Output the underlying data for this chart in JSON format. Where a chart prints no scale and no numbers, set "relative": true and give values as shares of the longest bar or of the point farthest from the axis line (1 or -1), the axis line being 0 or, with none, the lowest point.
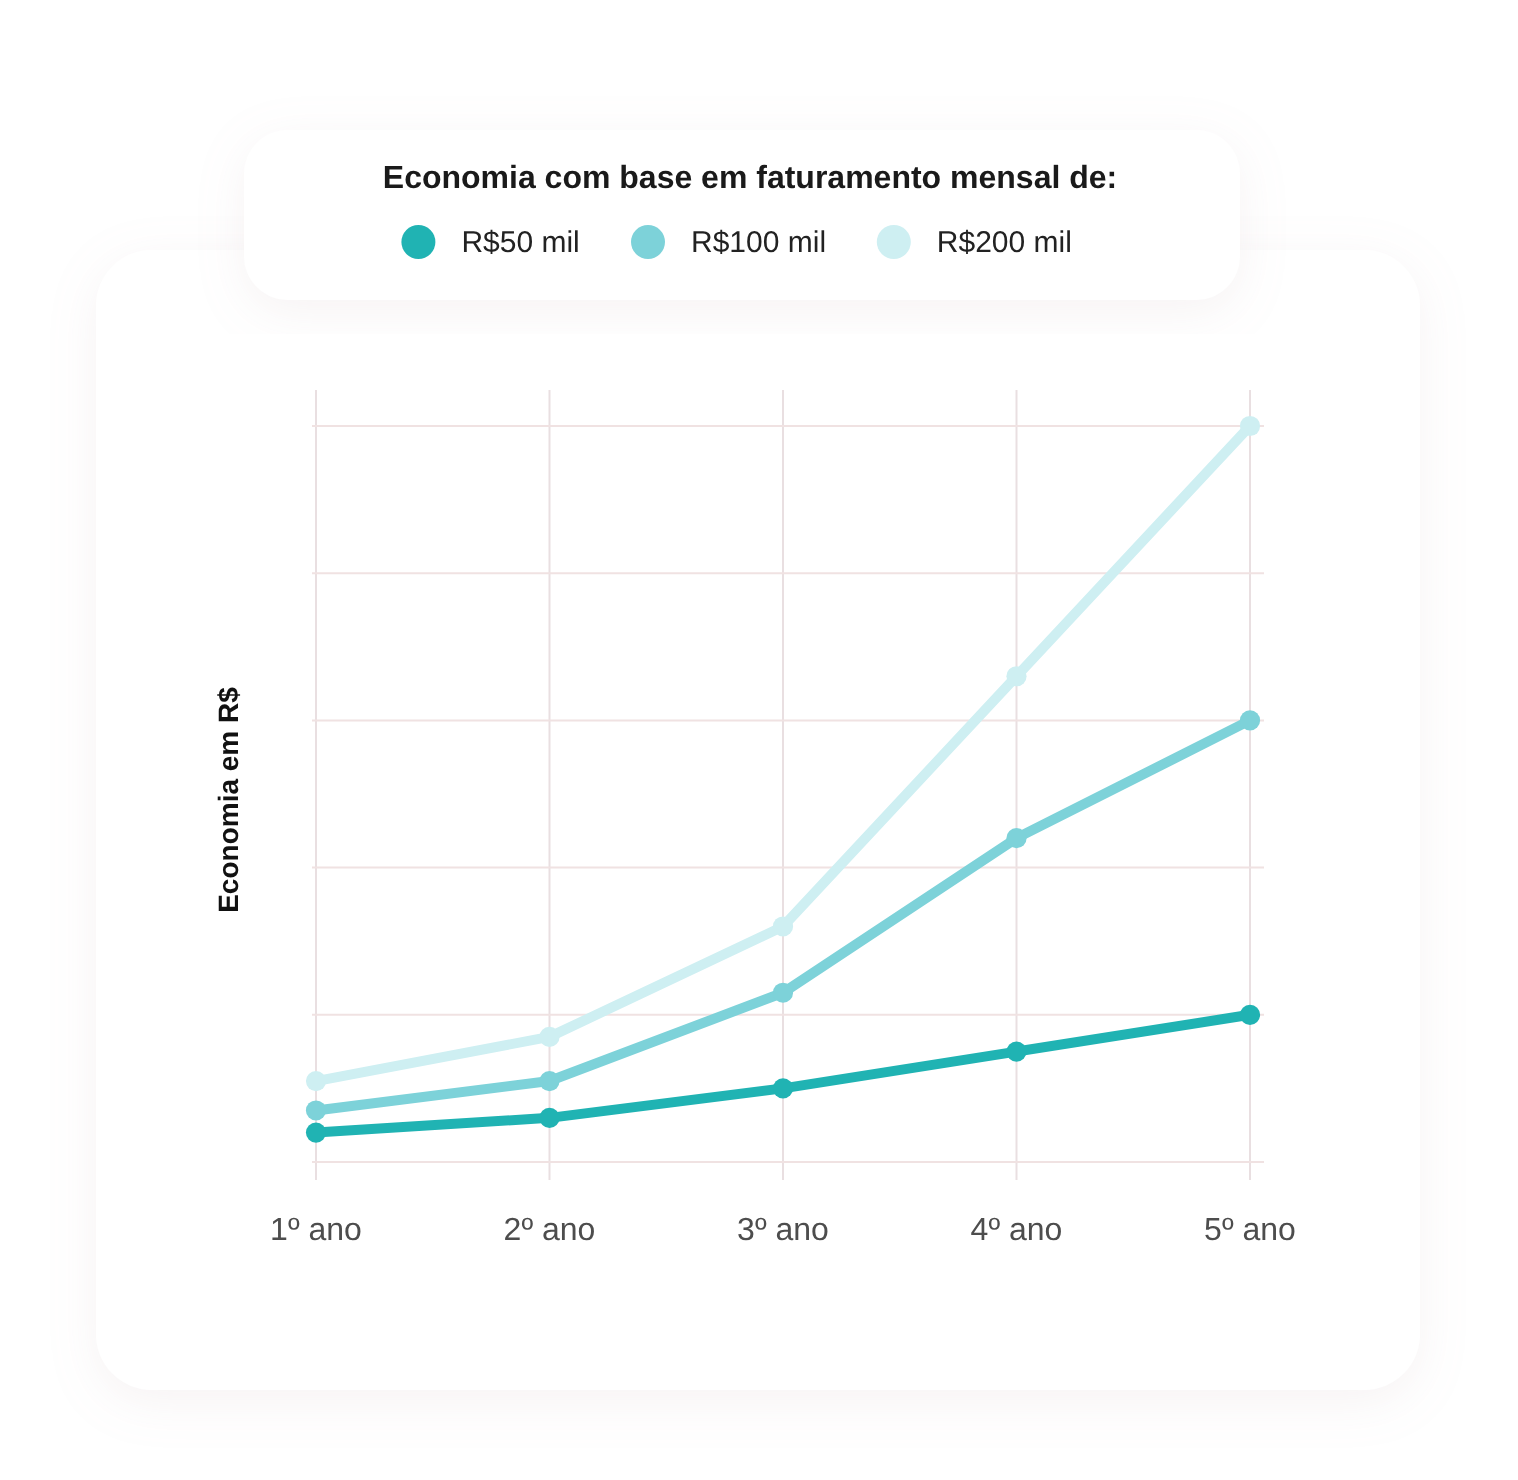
{
  "chart_data": {
    "type": "line",
    "legend_title": "Economia com base em faturamento mensal de:",
    "ylabel": "Economia em R$",
    "categories": [
      "1º ano",
      "2º ano",
      "3º ano",
      "4º ano",
      "5º ano"
    ],
    "series": [
      {
        "name": "R$50 mil",
        "color": "#20b3b3",
        "values": [
          0.04,
          0.06,
          0.1,
          0.15,
          0.2
        ]
      },
      {
        "name": "R$100 mil",
        "color": "#7dd2d9",
        "values": [
          0.07,
          0.11,
          0.23,
          0.44,
          0.6
        ]
      },
      {
        "name": "R$200 mil",
        "color": "#ceeff2",
        "values": [
          0.11,
          0.17,
          0.32,
          0.66,
          1
        ]
      }
    ],
    "relative": true,
    "grid": true,
    "legend": "top",
    "marker": "circle"
  }
}
